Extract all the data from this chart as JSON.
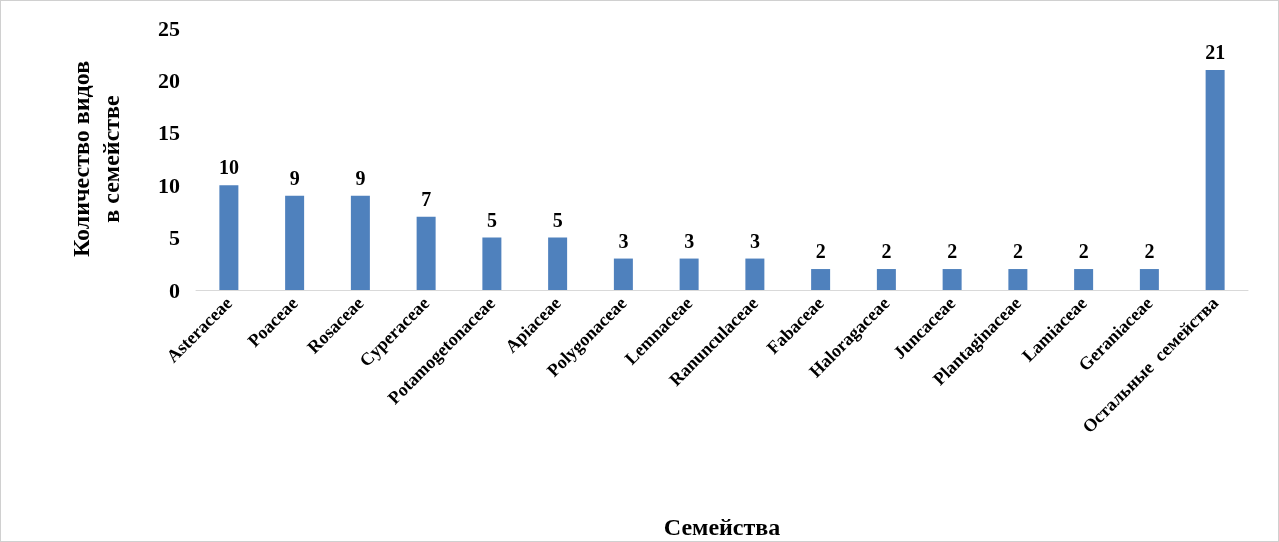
{
  "chart_data": {
    "type": "bar",
    "xlabel": "Семейства",
    "ylabel": "Количество видов в семействе",
    "categories": [
      "Asteraceae",
      "Poaceae",
      "Rosaceae",
      "Cyperaceae",
      "Potamogetonaceae",
      "Apiaceae",
      "Polygonaceae",
      "Lemnaceae",
      "Ranunculaceae",
      "Fabaceae",
      "Haloragaceae",
      "Juncaceae",
      "Plantaginaceae",
      "Lamiaceae",
      "Geraniaceae",
      "Остальные  семейства"
    ],
    "values": [
      10,
      9,
      9,
      7,
      5,
      5,
      3,
      3,
      3,
      2,
      2,
      2,
      2,
      2,
      2,
      21
    ],
    "color": "#4f81bd",
    "ylim": [
      0,
      25
    ],
    "yticks": [
      0,
      5,
      10,
      15,
      20,
      25
    ],
    "grid": false,
    "data_labels": true
  }
}
